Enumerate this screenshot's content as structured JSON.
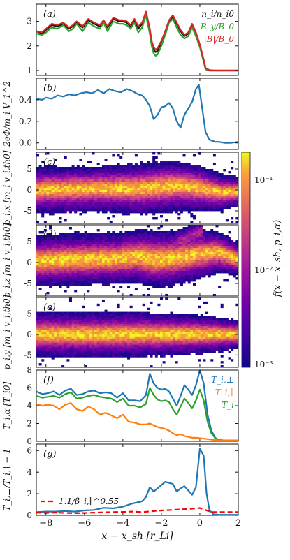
{
  "chart_data": [
    {
      "id": "a",
      "type": "line",
      "panel_label": "(a)",
      "ylim": [
        0.8,
        3.7
      ],
      "yticks": [
        "1",
        "2",
        "3"
      ],
      "legend_position": "top-right",
      "series": [
        {
          "name": "n_i/n_i0",
          "color": "#111111",
          "x": [
            -8.5,
            -8.2,
            -8.0,
            -7.7,
            -7.4,
            -7.1,
            -6.8,
            -6.6,
            -6.4,
            -6.1,
            -5.8,
            -5.5,
            -5.2,
            -5.0,
            -4.8,
            -4.5,
            -4.2,
            -4.0,
            -3.8,
            -3.6,
            -3.4,
            -3.2,
            -3.0,
            -2.8,
            -2.6,
            -2.5,
            -2.4,
            -2.3,
            -2.2,
            -2.0,
            -1.8,
            -1.6,
            -1.4,
            -1.2,
            -1.0,
            -0.8,
            -0.6,
            -0.4,
            -0.2,
            0.0,
            0.2,
            0.3,
            0.5,
            0.8,
            1.2,
            1.6,
            2.0
          ],
          "y": [
            2.6,
            2.5,
            2.65,
            2.85,
            2.8,
            2.9,
            2.7,
            2.8,
            2.95,
            2.75,
            3.05,
            2.9,
            2.8,
            3.0,
            2.75,
            3.1,
            3.0,
            3.0,
            2.95,
            2.8,
            3.05,
            2.7,
            2.9,
            3.35,
            2.6,
            2.1,
            1.85,
            1.75,
            1.8,
            2.15,
            2.55,
            3.0,
            3.2,
            2.9,
            2.6,
            2.4,
            2.5,
            2.85,
            2.5,
            2.0,
            1.4,
            1.05,
            1.0,
            1.0,
            1.0,
            1.0,
            1.0
          ]
        },
        {
          "name": "B_y/B_0",
          "color": "#2ca02c",
          "x": [
            -8.5,
            -8.2,
            -8.0,
            -7.7,
            -7.4,
            -7.1,
            -6.8,
            -6.6,
            -6.4,
            -6.1,
            -5.8,
            -5.5,
            -5.2,
            -5.0,
            -4.8,
            -4.5,
            -4.2,
            -4.0,
            -3.8,
            -3.6,
            -3.4,
            -3.2,
            -3.0,
            -2.8,
            -2.6,
            -2.5,
            -2.4,
            -2.3,
            -2.2,
            -2.0,
            -1.8,
            -1.6,
            -1.4,
            -1.2,
            -1.0,
            -0.8,
            -0.6,
            -0.4,
            -0.2,
            0.0,
            0.2,
            0.3,
            0.5,
            0.8,
            1.2,
            1.6,
            2.0
          ],
          "y": [
            2.5,
            2.45,
            2.55,
            2.75,
            2.7,
            2.85,
            2.6,
            2.7,
            2.9,
            2.6,
            2.95,
            2.8,
            2.7,
            2.95,
            2.6,
            3.0,
            2.9,
            2.9,
            2.85,
            2.7,
            2.95,
            2.55,
            2.75,
            3.25,
            2.5,
            2.0,
            1.7,
            1.6,
            1.65,
            2.0,
            2.45,
            2.95,
            3.1,
            2.75,
            2.45,
            2.3,
            2.4,
            2.75,
            2.4,
            1.95,
            1.35,
            1.05,
            1.0,
            1.0,
            1.0,
            1.0,
            1.0
          ]
        },
        {
          "name": "|B|/B_0",
          "color": "#d62728",
          "x": [
            -8.5,
            -8.2,
            -8.0,
            -7.7,
            -7.4,
            -7.1,
            -6.8,
            -6.6,
            -6.4,
            -6.1,
            -5.8,
            -5.5,
            -5.2,
            -5.0,
            -4.8,
            -4.5,
            -4.2,
            -4.0,
            -3.8,
            -3.6,
            -3.4,
            -3.2,
            -3.0,
            -2.8,
            -2.6,
            -2.5,
            -2.4,
            -2.3,
            -2.2,
            -2.0,
            -1.8,
            -1.6,
            -1.4,
            -1.2,
            -1.0,
            -0.8,
            -0.6,
            -0.4,
            -0.2,
            0.0,
            0.2,
            0.3,
            0.5,
            0.8,
            1.2,
            1.6,
            2.0
          ],
          "y": [
            2.6,
            2.55,
            2.7,
            2.9,
            2.85,
            2.95,
            2.75,
            2.85,
            3.0,
            2.8,
            3.1,
            2.95,
            2.85,
            3.05,
            2.8,
            3.15,
            3.05,
            3.05,
            3.0,
            2.85,
            3.1,
            2.8,
            2.95,
            3.4,
            2.7,
            2.2,
            1.95,
            1.85,
            1.9,
            2.2,
            2.6,
            3.05,
            3.25,
            2.95,
            2.65,
            2.45,
            2.55,
            2.9,
            2.55,
            2.05,
            1.45,
            1.1,
            1.02,
            1.0,
            1.0,
            1.0,
            1.0
          ]
        }
      ],
      "legend": [
        "n_i/n_i0",
        "B_y/B_0",
        "|B|/B_0"
      ]
    },
    {
      "id": "b",
      "type": "line",
      "panel_label": "(b)",
      "ylabel": "2eΦ/m_i V_1^2",
      "ylim": [
        -0.06,
        0.6
      ],
      "yticks": [
        "0.0",
        "0.2",
        "0.4"
      ],
      "series": [
        {
          "name": "",
          "color": "#1f77b4",
          "x": [
            -8.5,
            -8.2,
            -8.0,
            -7.7,
            -7.4,
            -7.1,
            -6.8,
            -6.5,
            -6.2,
            -5.9,
            -5.6,
            -5.3,
            -5.0,
            -4.7,
            -4.4,
            -4.1,
            -3.8,
            -3.5,
            -3.2,
            -3.0,
            -2.8,
            -2.6,
            -2.4,
            -2.2,
            -2.0,
            -1.8,
            -1.6,
            -1.4,
            -1.2,
            -1.0,
            -0.8,
            -0.6,
            -0.4,
            -0.2,
            -0.05,
            0.1,
            0.3,
            0.5,
            0.8,
            1.0,
            1.3,
            1.6,
            2.0
          ],
          "y": [
            0.41,
            0.4,
            0.42,
            0.41,
            0.44,
            0.43,
            0.45,
            0.44,
            0.46,
            0.47,
            0.46,
            0.49,
            0.46,
            0.5,
            0.48,
            0.47,
            0.5,
            0.48,
            0.45,
            0.44,
            0.4,
            0.34,
            0.22,
            0.26,
            0.33,
            0.34,
            0.37,
            0.32,
            0.2,
            0.14,
            0.26,
            0.32,
            0.38,
            0.5,
            0.54,
            0.35,
            0.1,
            0.03,
            0.01,
            0.01,
            0.0,
            0.0,
            0.01
          ]
        }
      ]
    },
    {
      "id": "c",
      "type": "heatmap",
      "panel_label": "(c)",
      "ylabel": "p_i,x [m_i v_i,th0]",
      "ylim": [
        -8,
        9
      ],
      "yticks": [
        "-5",
        "0",
        "5"
      ],
      "core_offset": [
        0.0,
        0.1,
        0.2,
        0.3,
        0.3,
        0.3,
        0.6,
        1.0,
        0.5,
        -0.5,
        -0.5
      ],
      "core_width": [
        2.2,
        2.2,
        2.2,
        2.2,
        2.3,
        2.4,
        2.5,
        2.4,
        2.2,
        1.8,
        1.4
      ]
    },
    {
      "id": "d",
      "type": "heatmap",
      "panel_label": "(d)",
      "ylabel": "p_i,z [m_i v_i,th0]",
      "ylim": [
        -8,
        9
      ],
      "yticks": [
        "-5",
        "0",
        "5"
      ],
      "core_offset": [
        0.3,
        0.6,
        0.8,
        0.9,
        1.0,
        1.5,
        0.8,
        1.2,
        2.0,
        2.5,
        0.8
      ],
      "core_width": [
        2.4,
        2.5,
        2.5,
        2.5,
        2.4,
        2.6,
        2.8,
        2.6,
        2.4,
        2.0,
        1.6
      ]
    },
    {
      "id": "e",
      "type": "heatmap",
      "panel_label": "(e)",
      "ylabel": "p_i,y [m_i v_i,th0]",
      "ylim": [
        -8,
        9
      ],
      "yticks": [
        "-5",
        "0",
        "5"
      ],
      "core_offset": [
        0,
        0,
        0,
        0,
        0,
        0,
        0,
        0,
        0,
        0,
        0
      ],
      "core_width": [
        2.2,
        2.2,
        2.2,
        2.2,
        2.2,
        2.2,
        2.1,
        2.0,
        1.9,
        1.7,
        1.4
      ]
    },
    {
      "id": "f",
      "type": "line",
      "panel_label": "(f)",
      "ylabel": "T_i,α [T_i0]",
      "ylim": [
        0,
        8
      ],
      "yticks": [
        "0",
        "2",
        "4",
        "6",
        "8"
      ],
      "legend_position": "top-right",
      "series": [
        {
          "name": "T_i,⊥",
          "color": "#1f77b4",
          "x": [
            -8.5,
            -8.2,
            -7.9,
            -7.6,
            -7.3,
            -7.0,
            -6.7,
            -6.4,
            -6.1,
            -5.8,
            -5.5,
            -5.2,
            -4.9,
            -4.6,
            -4.3,
            -4.0,
            -3.7,
            -3.4,
            -3.1,
            -2.8,
            -2.6,
            -2.4,
            -2.2,
            -2.0,
            -1.8,
            -1.6,
            -1.4,
            -1.2,
            -1.0,
            -0.8,
            -0.6,
            -0.4,
            -0.2,
            0.0,
            0.2,
            0.4,
            0.6,
            0.8,
            1.0,
            1.3,
            1.6,
            2.0
          ],
          "y": [
            5.6,
            5.3,
            5.4,
            5.6,
            5.2,
            5.7,
            5.9,
            5.2,
            5.3,
            5.6,
            5.7,
            5.4,
            5.5,
            5.4,
            4.9,
            5.4,
            4.6,
            4.6,
            4.5,
            5.2,
            7.6,
            6.5,
            6.0,
            5.8,
            5.9,
            5.6,
            4.8,
            4.0,
            5.1,
            6.3,
            5.8,
            5.2,
            6.3,
            8.0,
            6.5,
            3.0,
            1.2,
            0.4,
            0.15,
            0.1,
            0.1,
            0.1
          ]
        },
        {
          "name": "T_i",
          "color": "#2ca02c",
          "x": [
            -8.5,
            -8.2,
            -7.9,
            -7.6,
            -7.3,
            -7.0,
            -6.7,
            -6.4,
            -6.1,
            -5.8,
            -5.5,
            -5.2,
            -4.9,
            -4.6,
            -4.3,
            -4.0,
            -3.7,
            -3.4,
            -3.1,
            -2.8,
            -2.6,
            -2.4,
            -2.2,
            -2.0,
            -1.8,
            -1.6,
            -1.4,
            -1.2,
            -1.0,
            -0.8,
            -0.6,
            -0.4,
            -0.2,
            0.0,
            0.2,
            0.4,
            0.6,
            0.8,
            1.0,
            1.3,
            1.6,
            2.0
          ],
          "y": [
            5.1,
            4.9,
            5.0,
            5.1,
            4.9,
            5.3,
            5.5,
            4.8,
            4.9,
            5.1,
            5.2,
            5.0,
            4.9,
            4.8,
            4.4,
            4.8,
            4.0,
            4.0,
            3.8,
            4.2,
            6.0,
            5.2,
            4.7,
            4.5,
            4.6,
            4.4,
            3.6,
            3.0,
            3.9,
            4.8,
            4.3,
            3.7,
            4.6,
            5.8,
            4.6,
            2.2,
            0.9,
            0.35,
            0.15,
            0.1,
            0.1,
            0.1
          ]
        },
        {
          "name": "T_i,∥",
          "color": "#ff7f0e",
          "x": [
            -8.5,
            -8.2,
            -7.9,
            -7.6,
            -7.3,
            -7.0,
            -6.7,
            -6.4,
            -6.1,
            -5.8,
            -5.5,
            -5.2,
            -4.9,
            -4.6,
            -4.3,
            -4.0,
            -3.7,
            -3.4,
            -3.1,
            -2.8,
            -2.6,
            -2.4,
            -2.2,
            -2.0,
            -1.8,
            -1.6,
            -1.4,
            -1.2,
            -1.0,
            -0.8,
            -0.6,
            -0.4,
            -0.2,
            0.0,
            0.2,
            0.4,
            0.6,
            0.8,
            1.0,
            1.3,
            1.6,
            2.0
          ],
          "y": [
            4.2,
            4.0,
            4.1,
            4.0,
            3.6,
            4.1,
            4.3,
            3.6,
            3.4,
            3.9,
            3.6,
            3.0,
            3.2,
            2.9,
            2.6,
            3.0,
            2.2,
            2.1,
            1.9,
            1.9,
            2.0,
            1.8,
            1.6,
            1.5,
            1.4,
            1.2,
            0.9,
            0.7,
            0.8,
            0.6,
            0.5,
            0.4,
            0.4,
            0.35,
            0.3,
            0.25,
            0.2,
            0.15,
            0.1,
            0.1,
            0.1,
            0.1
          ]
        }
      ],
      "legend": [
        "T_i,⊥",
        "T_i,∥",
        "T_i"
      ]
    },
    {
      "id": "g",
      "type": "line",
      "panel_label": "(g)",
      "ylabel": "T_i,⊥/T_i,∥ − 1",
      "xlabel": "x − x_sh [r_Li]",
      "xlim": [
        -8.5,
        2
      ],
      "xticks": [
        "−8",
        "−6",
        "−4",
        "−2",
        "0",
        "2"
      ],
      "ylim": [
        0,
        6.6
      ],
      "yticks": [
        "0",
        "2",
        "4",
        "6"
      ],
      "legend_position": "lower-left",
      "series": [
        {
          "name": "",
          "color": "#1f77b4",
          "x": [
            -8.5,
            -8.0,
            -7.5,
            -7.0,
            -6.5,
            -6.0,
            -5.5,
            -5.0,
            -4.5,
            -4.0,
            -3.5,
            -3.0,
            -2.8,
            -2.6,
            -2.4,
            -2.2,
            -2.0,
            -1.8,
            -1.6,
            -1.4,
            -1.2,
            -1.0,
            -0.8,
            -0.6,
            -0.4,
            -0.2,
            0.0,
            0.2,
            0.35,
            0.5,
            0.7,
            1.0,
            1.5,
            2.0
          ],
          "y": [
            0.3,
            0.35,
            0.35,
            0.4,
            0.35,
            0.45,
            0.5,
            0.7,
            0.65,
            0.8,
            1.1,
            1.3,
            1.7,
            2.6,
            2.2,
            2.5,
            2.8,
            3.1,
            3.0,
            2.9,
            2.2,
            2.5,
            2.7,
            2.3,
            1.9,
            2.6,
            6.2,
            5.5,
            2.0,
            0.5,
            0.1,
            0.05,
            0.05,
            0.05
          ]
        },
        {
          "name": "1.1/β_i,∥^0.55",
          "color": "#ff0000",
          "dashed": true,
          "x": [
            -8.5,
            -8.0,
            -7.5,
            -7.0,
            -6.5,
            -6.0,
            -5.5,
            -5.0,
            -4.5,
            -4.0,
            -3.5,
            -3.0,
            -2.5,
            -2.0,
            -1.5,
            -1.0,
            -0.5,
            0.0,
            0.3,
            0.6,
            1.0,
            1.5,
            2.0
          ],
          "y": [
            0.25,
            0.22,
            0.25,
            0.22,
            0.2,
            0.22,
            0.25,
            0.28,
            0.3,
            0.32,
            0.35,
            0.3,
            0.38,
            0.45,
            0.5,
            0.55,
            0.6,
            0.68,
            0.5,
            0.3,
            0.3,
            0.3,
            0.3
          ]
        }
      ],
      "legend": [
        "1.1/β_i,∥^0.55"
      ]
    }
  ],
  "colorbar": {
    "label": "f(x − x_sh, p_i,α)",
    "ticks": [
      "10⁻¹",
      "10⁻²",
      "10⁻³"
    ],
    "scale": "log"
  }
}
